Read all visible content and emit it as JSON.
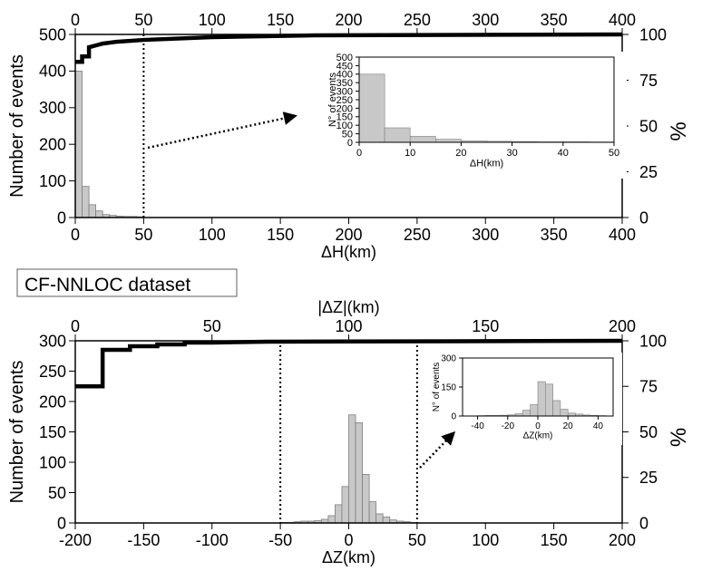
{
  "dataset_label": "CF-NNLOC dataset",
  "colors": {
    "bar_fill": "#c8c8c8",
    "bar_stroke": "#7f7f7f",
    "cumulative_line": "#000000",
    "marker_line": "#000000"
  },
  "chart_data": [
    {
      "id": "top-main",
      "type": "bar",
      "xlabel": "ΔH(km)",
      "ylabel": "Number of events",
      "y2label": "%",
      "xlim": [
        0,
        400
      ],
      "ylim": [
        0,
        500
      ],
      "y2lim": [
        0,
        100
      ],
      "xticks": [
        0,
        50,
        100,
        150,
        200,
        250,
        300,
        350,
        400
      ],
      "xticks_top": [
        0,
        50,
        100,
        150,
        200,
        250,
        300,
        350,
        400
      ],
      "yticks": [
        0,
        100,
        200,
        300,
        400,
        500
      ],
      "y2ticks": [
        0,
        25,
        50,
        75,
        100
      ],
      "histogram": {
        "bin_edges": [
          0,
          5,
          10,
          15,
          20,
          25,
          30,
          35,
          40,
          45,
          50
        ],
        "counts": [
          400,
          85,
          35,
          18,
          8,
          6,
          4,
          3,
          3,
          2
        ]
      },
      "cumulative_percent": {
        "x": [
          0,
          5,
          5,
          10,
          10,
          15,
          20,
          30,
          50,
          100,
          175,
          400
        ],
        "y": [
          85,
          85,
          88,
          88,
          93,
          94,
          95,
          96,
          97,
          98.5,
          99.5,
          100
        ]
      },
      "marker_x": [
        50
      ],
      "grid": false
    },
    {
      "id": "top-inset",
      "type": "bar",
      "xlabel": "ΔH(km)",
      "ylabel": "N° of events",
      "xlim": [
        0,
        50
      ],
      "ylim": [
        0,
        500
      ],
      "xticks": [
        0,
        10,
        20,
        30,
        40,
        50
      ],
      "yticks": [
        0,
        50,
        100,
        150,
        200,
        250,
        300,
        350,
        400,
        450,
        500
      ],
      "histogram": {
        "bin_edges": [
          0,
          5,
          10,
          15,
          20,
          25,
          30,
          35,
          40,
          45,
          50
        ],
        "counts": [
          400,
          85,
          35,
          18,
          8,
          6,
          4,
          3,
          3,
          2
        ]
      }
    },
    {
      "id": "bottom-main",
      "type": "bar",
      "xlabel": "ΔZ(km)",
      "x2label": "|ΔZ|(km)",
      "ylabel": "Number of events",
      "y2label": "%",
      "xlim": [
        -200,
        200
      ],
      "x2lim": [
        0,
        200
      ],
      "ylim": [
        0,
        300
      ],
      "y2lim": [
        0,
        100
      ],
      "xticks": [
        -200,
        -150,
        -100,
        -50,
        0,
        50,
        100,
        150,
        200
      ],
      "xticks_top": [
        0,
        50,
        100,
        150,
        200
      ],
      "yticks": [
        0,
        50,
        100,
        150,
        200,
        250,
        300
      ],
      "y2ticks": [
        0,
        25,
        50,
        75,
        100
      ],
      "histogram": {
        "bin_edges": [
          -50,
          -45,
          -40,
          -35,
          -30,
          -25,
          -20,
          -15,
          -10,
          -5,
          0,
          5,
          10,
          15,
          20,
          25,
          30,
          35,
          40,
          45,
          50
        ],
        "counts": [
          1,
          1,
          2,
          3,
          3,
          4,
          6,
          12,
          30,
          60,
          178,
          165,
          80,
          35,
          15,
          10,
          5,
          3,
          2,
          1
        ]
      },
      "cumulative_percent": {
        "x": [
          0,
          10,
          10,
          20,
          20,
          30,
          30,
          40,
          40,
          50,
          70,
          200
        ],
        "y": [
          75,
          75,
          95,
          95,
          97,
          97,
          98,
          98,
          99,
          99,
          99.5,
          100
        ]
      },
      "marker_x": [
        -50,
        50
      ],
      "grid": false
    },
    {
      "id": "bottom-inset",
      "type": "bar",
      "xlabel": "ΔZ(km)",
      "ylabel": "N° of events",
      "xlim": [
        -50,
        50
      ],
      "ylim": [
        0,
        300
      ],
      "xticks": [
        -40,
        -20,
        0,
        20,
        40
      ],
      "yticks": [
        0,
        150,
        300
      ],
      "histogram": {
        "bin_edges": [
          -50,
          -45,
          -40,
          -35,
          -30,
          -25,
          -20,
          -15,
          -10,
          -5,
          0,
          5,
          10,
          15,
          20,
          25,
          30,
          35,
          40,
          45,
          50
        ],
        "counts": [
          1,
          1,
          2,
          3,
          3,
          4,
          6,
          12,
          30,
          60,
          178,
          165,
          80,
          35,
          15,
          10,
          5,
          3,
          2,
          1
        ]
      }
    }
  ]
}
